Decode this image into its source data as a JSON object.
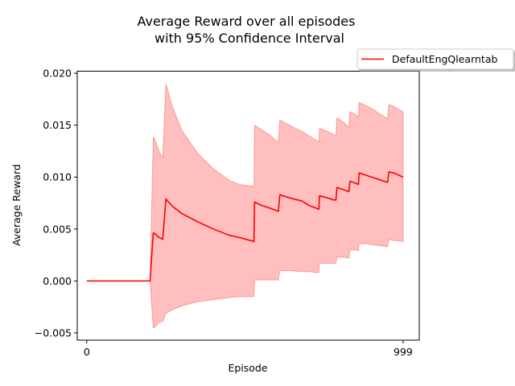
{
  "chart_data": {
    "type": "line",
    "title_line1": "Average Reward over all episodes",
    "title_line2": "with 95% Confidence Interval",
    "xlabel": "Episode",
    "ylabel": "Average Reward",
    "xlim": [
      -30,
      1050
    ],
    "ylim": [
      -0.0057,
      0.0202
    ],
    "xticks": [
      0,
      999
    ],
    "xtick_labels": [
      "0",
      "999"
    ],
    "yticks": [
      -0.005,
      0.0,
      0.005,
      0.01,
      0.015,
      0.02
    ],
    "ytick_labels": [
      "−0.005",
      "0.000",
      "0.005",
      "0.010",
      "0.015",
      "0.020"
    ],
    "legend_position": "outside-top-right",
    "series": [
      {
        "name": "DefaultEngQlearntab",
        "color": "#ff0000",
        "ci_color": "#ff0000",
        "x": [
          0,
          1,
          100,
          200,
          210,
          213,
          228,
          240,
          250,
          270,
          300,
          350,
          400,
          450,
          480,
          528,
          530,
          550,
          580,
          605,
          610,
          640,
          680,
          700,
          733,
          735,
          760,
          780,
          787,
          790,
          810,
          828,
          831,
          850,
          858,
          860,
          880,
          900,
          950,
          954,
          970,
          999
        ],
        "y": [
          0.0,
          0.0,
          0.0,
          0.0,
          0.0046,
          0.0046,
          0.0042,
          0.004,
          0.0079,
          0.0072,
          0.0065,
          0.0057,
          0.005,
          0.0044,
          0.0042,
          0.0038,
          0.0076,
          0.0073,
          0.007,
          0.0067,
          0.0083,
          0.008,
          0.0077,
          0.0073,
          0.0069,
          0.0082,
          0.008,
          0.0078,
          0.0078,
          0.009,
          0.0088,
          0.0086,
          0.0096,
          0.0094,
          0.0093,
          0.0104,
          0.0102,
          0.01,
          0.0095,
          0.0105,
          0.0104,
          0.01
        ],
        "ci_lower": [
          0.0,
          0.0,
          0.0,
          0.0,
          -0.0045,
          -0.0045,
          -0.004,
          -0.0039,
          -0.0031,
          -0.0028,
          -0.0024,
          -0.002,
          -0.0018,
          -0.0016,
          -0.0015,
          -0.0015,
          0.0001,
          0.0001,
          0.0001,
          0.0001,
          0.001,
          0.001,
          0.0009,
          0.0009,
          0.0008,
          0.0017,
          0.0017,
          0.0017,
          0.0017,
          0.0023,
          0.0023,
          0.0022,
          0.003,
          0.003,
          0.0029,
          0.0036,
          0.0036,
          0.0035,
          0.0033,
          0.004,
          0.0039,
          0.0038
        ],
        "ci_upper": [
          0.0,
          0.0,
          0.0,
          0.0,
          0.0138,
          0.0138,
          0.0125,
          0.0119,
          0.019,
          0.0168,
          0.0145,
          0.0123,
          0.0108,
          0.0097,
          0.0093,
          0.0091,
          0.015,
          0.0146,
          0.014,
          0.0133,
          0.0155,
          0.015,
          0.0144,
          0.014,
          0.0134,
          0.0147,
          0.0144,
          0.0141,
          0.014,
          0.0157,
          0.0153,
          0.0148,
          0.0163,
          0.016,
          0.0158,
          0.0172,
          0.0169,
          0.0166,
          0.0156,
          0.017,
          0.0168,
          0.0163
        ]
      }
    ]
  }
}
